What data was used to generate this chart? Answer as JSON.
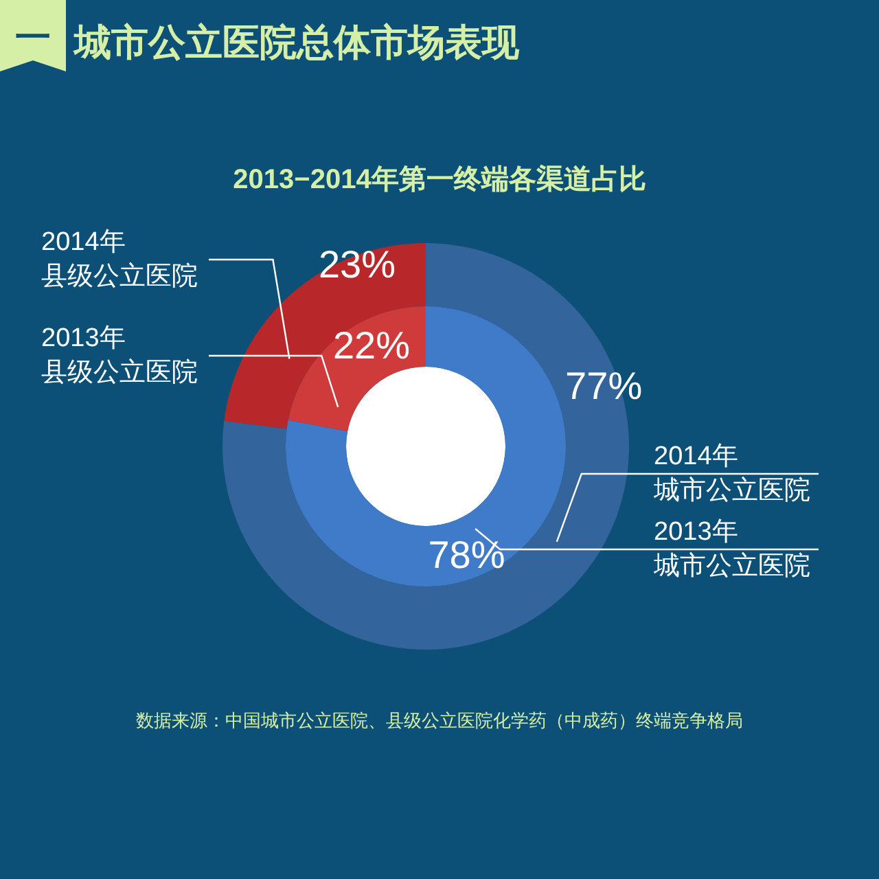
{
  "chart_data": [
    {
      "type": "donut",
      "title": "城市公立医院总体市场表现",
      "subtitle": "2013−2014年第一终端各渠道占比",
      "annotations": [
        "一",
        "数据来源：中国城市公立医院、县级公立医院化学药（中成药）终端竞争格局"
      ],
      "categories": [
        "县级公立医院",
        "城市公立医院"
      ],
      "series": [
        {
          "name": "2014年",
          "values": [
            23,
            77
          ],
          "value_labels": [
            "23%",
            "77%"
          ],
          "colors": [
            "#b8282a",
            "#34649c"
          ]
        }
      ]
    },
    {
      "type": "donut",
      "categories": [
        "县级公立医院",
        "城市公立医院"
      ],
      "series": [
        {
          "name": "2013年",
          "values": [
            22,
            78
          ],
          "value_labels": [
            "22%",
            "78%"
          ],
          "colors": [
            "#cf3b3b",
            "#3f7bc8"
          ]
        }
      ]
    }
  ]
}
